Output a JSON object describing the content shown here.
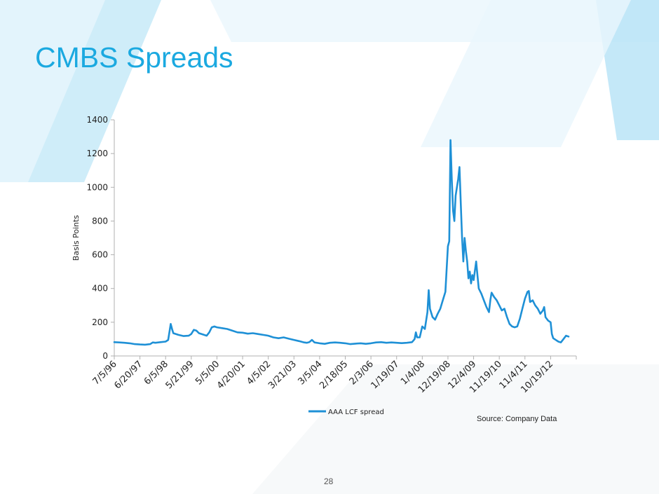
{
  "slide": {
    "title": "CMBS Spreads",
    "source": "Source: Company Data",
    "page_number": "28"
  },
  "colors": {
    "title": "#1ba9e0",
    "line": "#1e90d6",
    "axis": "#b0b0b0",
    "decor_light": "#dff2fb",
    "decor_mid": "#a9def4"
  },
  "chart_data": {
    "type": "line",
    "title": "",
    "xlabel": "",
    "ylabel": "Basis Points",
    "ylim": [
      0,
      1400
    ],
    "yticks": [
      0,
      200,
      400,
      600,
      800,
      1000,
      1200,
      1400
    ],
    "xticks": [
      "7/5/96",
      "6/20/97",
      "6/5/98",
      "5/21/99",
      "5/5/00",
      "4/20/01",
      "4/5/02",
      "3/21/03",
      "3/5/04",
      "2/18/05",
      "2/3/06",
      "1/19/07",
      "1/4/08",
      "12/19/08",
      "12/4/09",
      "11/19/10",
      "11/4/11",
      "10/19/12"
    ],
    "legend": "bottom-center",
    "grid": false,
    "series": [
      {
        "name": "AAA LCF spread",
        "points": [
          [
            0.0,
            82
          ],
          [
            0.2,
            80
          ],
          [
            0.4,
            78
          ],
          [
            0.6,
            75
          ],
          [
            0.8,
            70
          ],
          [
            1.0,
            68
          ],
          [
            1.2,
            67
          ],
          [
            1.4,
            70
          ],
          [
            1.5,
            80
          ],
          [
            1.6,
            78
          ],
          [
            1.8,
            82
          ],
          [
            2.0,
            85
          ],
          [
            2.1,
            95
          ],
          [
            2.2,
            190
          ],
          [
            2.25,
            160
          ],
          [
            2.3,
            135
          ],
          [
            2.5,
            125
          ],
          [
            2.7,
            118
          ],
          [
            2.9,
            120
          ],
          [
            3.0,
            130
          ],
          [
            3.1,
            155
          ],
          [
            3.2,
            150
          ],
          [
            3.3,
            135
          ],
          [
            3.5,
            125
          ],
          [
            3.6,
            120
          ],
          [
            3.7,
            140
          ],
          [
            3.8,
            170
          ],
          [
            3.9,
            175
          ],
          [
            4.0,
            170
          ],
          [
            4.2,
            165
          ],
          [
            4.4,
            160
          ],
          [
            4.6,
            150
          ],
          [
            4.8,
            140
          ],
          [
            5.0,
            138
          ],
          [
            5.2,
            132
          ],
          [
            5.4,
            135
          ],
          [
            5.6,
            130
          ],
          [
            5.8,
            125
          ],
          [
            6.0,
            120
          ],
          [
            6.2,
            110
          ],
          [
            6.4,
            105
          ],
          [
            6.6,
            110
          ],
          [
            6.8,
            102
          ],
          [
            7.0,
            95
          ],
          [
            7.2,
            88
          ],
          [
            7.4,
            80
          ],
          [
            7.5,
            78
          ],
          [
            7.6,
            82
          ],
          [
            7.7,
            95
          ],
          [
            7.8,
            80
          ],
          [
            8.0,
            75
          ],
          [
            8.2,
            72
          ],
          [
            8.4,
            78
          ],
          [
            8.6,
            80
          ],
          [
            8.8,
            78
          ],
          [
            9.0,
            75
          ],
          [
            9.2,
            70
          ],
          [
            9.4,
            73
          ],
          [
            9.6,
            75
          ],
          [
            9.8,
            72
          ],
          [
            10.0,
            75
          ],
          [
            10.2,
            80
          ],
          [
            10.4,
            82
          ],
          [
            10.6,
            78
          ],
          [
            10.8,
            80
          ],
          [
            11.0,
            78
          ],
          [
            11.2,
            76
          ],
          [
            11.4,
            78
          ],
          [
            11.6,
            82
          ],
          [
            11.7,
            100
          ],
          [
            11.75,
            140
          ],
          [
            11.8,
            110
          ],
          [
            11.9,
            110
          ],
          [
            12.0,
            175
          ],
          [
            12.1,
            160
          ],
          [
            12.2,
            260
          ],
          [
            12.25,
            390
          ],
          [
            12.3,
            280
          ],
          [
            12.4,
            230
          ],
          [
            12.5,
            215
          ],
          [
            12.6,
            250
          ],
          [
            12.7,
            280
          ],
          [
            12.8,
            330
          ],
          [
            12.9,
            380
          ],
          [
            13.0,
            650
          ],
          [
            13.05,
            680
          ],
          [
            13.1,
            1280
          ],
          [
            13.15,
            1050
          ],
          [
            13.2,
            860
          ],
          [
            13.25,
            800
          ],
          [
            13.3,
            950
          ],
          [
            13.4,
            1050
          ],
          [
            13.45,
            1120
          ],
          [
            13.5,
            900
          ],
          [
            13.55,
            700
          ],
          [
            13.6,
            560
          ],
          [
            13.65,
            700
          ],
          [
            13.7,
            620
          ],
          [
            13.75,
            560
          ],
          [
            13.8,
            460
          ],
          [
            13.85,
            500
          ],
          [
            13.9,
            430
          ],
          [
            13.95,
            480
          ],
          [
            14.0,
            450
          ],
          [
            14.1,
            560
          ],
          [
            14.15,
            480
          ],
          [
            14.2,
            400
          ],
          [
            14.3,
            370
          ],
          [
            14.4,
            330
          ],
          [
            14.5,
            290
          ],
          [
            14.6,
            260
          ],
          [
            14.65,
            330
          ],
          [
            14.7,
            375
          ],
          [
            14.8,
            350
          ],
          [
            14.9,
            330
          ],
          [
            15.0,
            300
          ],
          [
            15.1,
            270
          ],
          [
            15.2,
            280
          ],
          [
            15.3,
            230
          ],
          [
            15.4,
            190
          ],
          [
            15.5,
            175
          ],
          [
            15.6,
            170
          ],
          [
            15.7,
            175
          ],
          [
            15.8,
            220
          ],
          [
            15.9,
            280
          ],
          [
            16.0,
            340
          ],
          [
            16.1,
            380
          ],
          [
            16.15,
            385
          ],
          [
            16.2,
            320
          ],
          [
            16.3,
            330
          ],
          [
            16.4,
            300
          ],
          [
            16.5,
            280
          ],
          [
            16.6,
            250
          ],
          [
            16.7,
            270
          ],
          [
            16.75,
            290
          ],
          [
            16.8,
            230
          ],
          [
            16.9,
            210
          ],
          [
            17.0,
            200
          ],
          [
            17.05,
            130
          ],
          [
            17.1,
            105
          ],
          [
            17.2,
            95
          ],
          [
            17.3,
            85
          ],
          [
            17.4,
            80
          ],
          [
            17.5,
            100
          ],
          [
            17.6,
            120
          ],
          [
            17.7,
            115
          ]
        ]
      }
    ]
  }
}
